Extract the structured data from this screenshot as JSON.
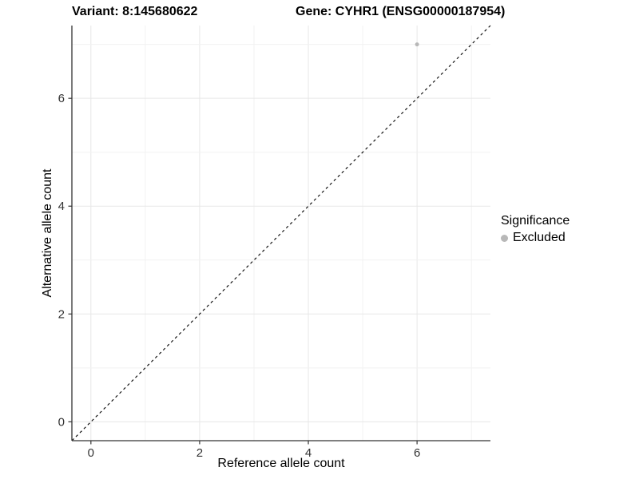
{
  "titles": {
    "left": "Variant: 8:145680622",
    "right": "Gene: CYHR1 (ENSG00000187954)"
  },
  "chart_data": {
    "type": "scatter",
    "title_left": "Variant: 8:145680622",
    "title_right": "Gene: CYHR1 (ENSG00000187954)",
    "xlabel": "Reference allele count",
    "ylabel": "Alternative allele count",
    "xlim": [
      -0.35,
      7.35
    ],
    "ylim": [
      -0.35,
      7.35
    ],
    "x_ticks": [
      0,
      2,
      4,
      6
    ],
    "y_ticks": [
      0,
      2,
      4,
      6
    ],
    "grid": "on",
    "gridline_interval": 1,
    "legend_position": "right",
    "series": [
      {
        "name": "Excluded",
        "color": "#b8b8b8",
        "point_radius": 2.5,
        "points": [
          [
            6,
            7
          ]
        ]
      }
    ],
    "reference_line": {
      "type": "identity",
      "from": [
        -0.35,
        -0.35
      ],
      "to": [
        7.35,
        7.35
      ],
      "style": "dashed",
      "color": "#000000"
    },
    "legend": {
      "title": "Significance",
      "items": [
        {
          "label": "Excluded",
          "color": "#b8b8b8"
        }
      ]
    }
  },
  "colors": {
    "background": "#ffffff",
    "axis_line": "#333333",
    "tick_label": "#333333",
    "grid_major": "#e7e7e7",
    "grid_minor": "#f2f2f2",
    "point": "#b8b8b8"
  }
}
